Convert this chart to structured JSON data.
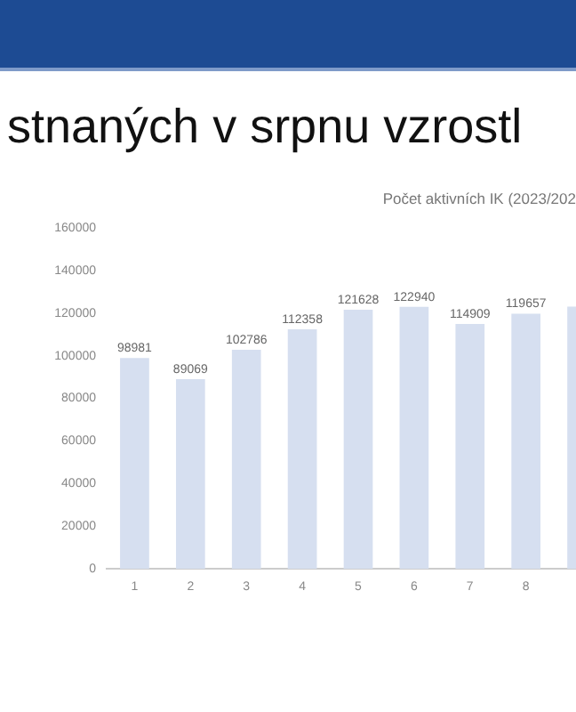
{
  "chart_data": {
    "type": "bar",
    "title": "Počet aktivních IK (2023/202",
    "subtitle": "stnaných v srpnu vzrostl",
    "categories": [
      "1",
      "2",
      "3",
      "4",
      "5",
      "6",
      "7",
      "8",
      null
    ],
    "values": [
      98981,
      89069,
      102786,
      112358,
      121628,
      122940,
      114909,
      119657,
      123000
    ],
    "value_labels": [
      "98981",
      "89069",
      "102786",
      "112358",
      "121628",
      "122940",
      "114909",
      "119657",
      null
    ],
    "color": "#d6dff0",
    "ylim": [
      0,
      160000
    ],
    "yticks": [
      0,
      20000,
      40000,
      60000,
      80000,
      100000,
      120000,
      140000,
      160000
    ],
    "grid": false,
    "legend": false
  }
}
